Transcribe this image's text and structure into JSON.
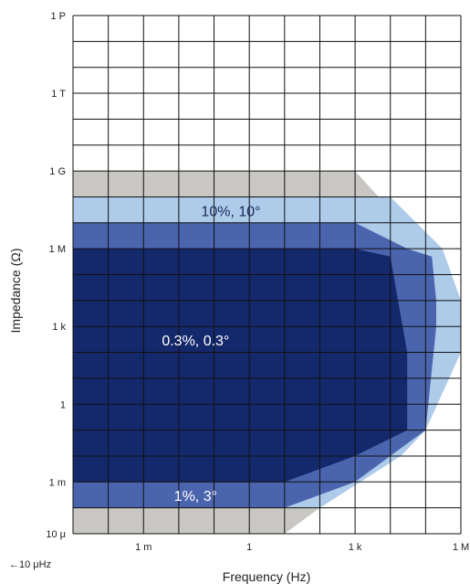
{
  "chart_data": {
    "type": "area",
    "xlabel": "Frequency (Hz)",
    "ylabel": "Impedance (Ω)",
    "x_scale": "log",
    "y_scale": "log",
    "xlim": [
      1e-05,
      1000000.0
    ],
    "ylim": [
      1e-05,
      1000000000000000.0
    ],
    "grid": true,
    "x_ticks": [
      {
        "value": 0.001,
        "label": "1 m"
      },
      {
        "value": 1,
        "label": "1"
      },
      {
        "value": 1000,
        "label": "1 k"
      },
      {
        "value": 1000000,
        "label": "1 M"
      }
    ],
    "x_min_note": "←10 μHz",
    "y_ticks": [
      {
        "value": 1e-05,
        "label": "10 μ"
      },
      {
        "value": 0.001,
        "label": "1 m"
      },
      {
        "value": 1,
        "label": "1"
      },
      {
        "value": 1000,
        "label": "1 k"
      },
      {
        "value": 1000000,
        "label": "1 M"
      },
      {
        "value": 1000000000.0,
        "label": "1 G"
      },
      {
        "value": 1000000000000.0,
        "label": "1 T"
      },
      {
        "value": 1000000000000000.0,
        "label": "1 P"
      }
    ],
    "regions": [
      {
        "fill": "#c9c7c4",
        "label": "",
        "points": [
          [
            1e-05,
            1e-05
          ],
          [
            10,
            1e-05
          ],
          [
            10000,
            0.01
          ],
          [
            100000,
            0.1
          ],
          [
            300000,
            1000
          ],
          [
            100000,
            1000000
          ],
          [
            1000,
            1000000000.0
          ],
          [
            1e-05,
            1000000000.0
          ]
        ]
      },
      {
        "fill": "#aecbea",
        "label": "10%, 10°",
        "label_pos": [
          0.3,
          30000000.0
        ],
        "points": [
          [
            1e-05,
            0.0001
          ],
          [
            100,
            0.0001
          ],
          [
            20000,
            0.01
          ],
          [
            100000,
            0.1
          ],
          [
            1000000,
            100
          ],
          [
            1000000,
            10000
          ],
          [
            300000,
            1000000
          ],
          [
            10000,
            100000000.0
          ],
          [
            1e-05,
            100000000.0
          ]
        ]
      },
      {
        "fill": "#4a64ae",
        "label": "1%, 3°",
        "label_pos": [
          0.03,
          0.0003
        ],
        "points": [
          [
            1e-05,
            0.0001
          ],
          [
            10,
            0.0001
          ],
          [
            1000,
            0.001
          ],
          [
            10000,
            0.01
          ],
          [
            100000,
            0.1
          ],
          [
            200000,
            1000
          ],
          [
            200000,
            10000
          ],
          [
            150000,
            500000
          ],
          [
            30000,
            1000000
          ],
          [
            1000,
            10000000.0
          ],
          [
            1e-05,
            10000000.0
          ]
        ]
      },
      {
        "fill": "#14296c",
        "label": "0.3%, 0.3°",
        "label_pos": [
          0.03,
          300
        ],
        "points": [
          [
            1e-05,
            0.001
          ],
          [
            10,
            0.001
          ],
          [
            1000,
            0.01
          ],
          [
            30000,
            0.1
          ],
          [
            30000,
            100
          ],
          [
            10000,
            500000
          ],
          [
            1000,
            1000000
          ],
          [
            1e-05,
            1000000
          ]
        ]
      }
    ]
  }
}
